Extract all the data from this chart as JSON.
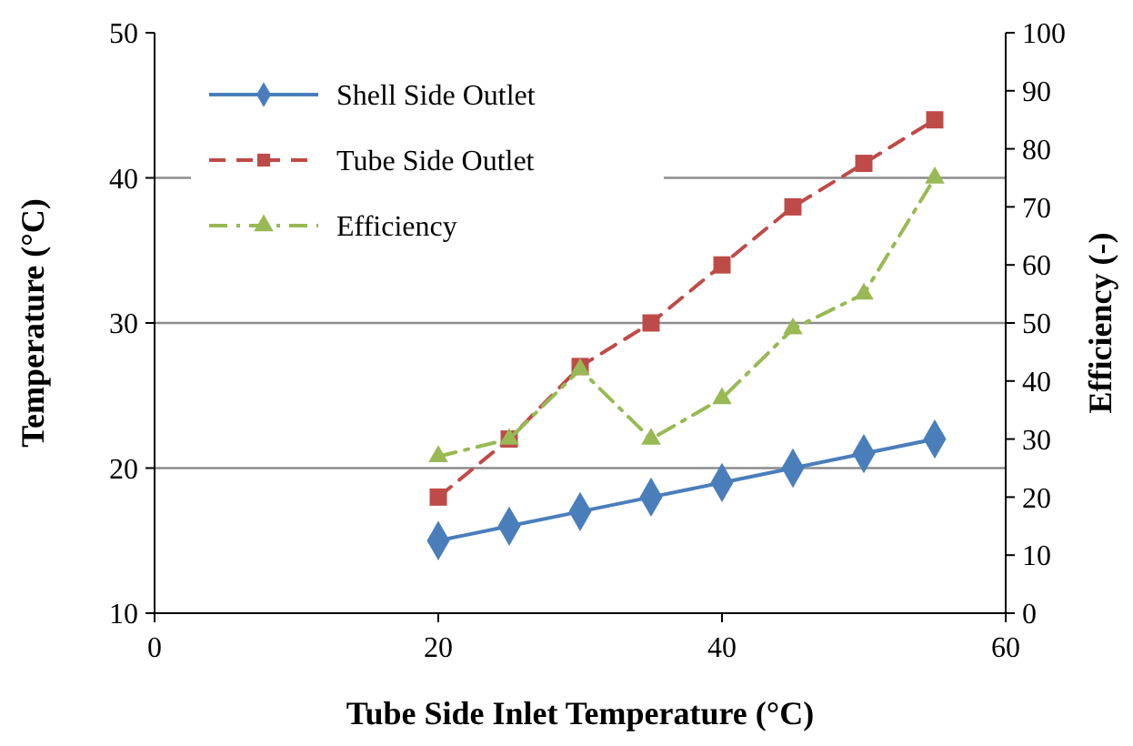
{
  "chart_data": {
    "type": "line",
    "xlabel": "Tube Side Inlet Temperature (°C)",
    "ylabel": "Temperature (°C)",
    "y2label": "Efficiency (-)",
    "x": [
      20,
      25,
      30,
      35,
      40,
      45,
      50,
      55
    ],
    "xlim": [
      0,
      60
    ],
    "xticks": [
      0,
      20,
      40,
      60
    ],
    "ylim": [
      10,
      50
    ],
    "yticks": [
      10,
      20,
      30,
      40,
      50
    ],
    "y2lim": [
      0,
      100
    ],
    "y2ticks": [
      0,
      10,
      20,
      30,
      40,
      50,
      60,
      70,
      80,
      90,
      100
    ],
    "grid": "y",
    "legend": "top left",
    "series": [
      {
        "name": "Shell Side Outlet",
        "color": "#4a7ebb",
        "marker": "diamond",
        "line_style": "solid",
        "values": [
          15,
          16,
          17,
          18,
          19,
          20,
          21,
          22
        ]
      },
      {
        "name": "Tube Side Outlet",
        "color": "#be4b48",
        "marker": "square",
        "line_style": "dashed",
        "values": [
          18,
          22,
          27,
          30,
          34,
          38,
          41,
          44
        ]
      },
      {
        "name": "Efficiency",
        "color": "#98b954",
        "marker": "triangle",
        "line_style": "dashdot",
        "axis": "y2",
        "values": [
          27,
          30,
          42,
          30,
          37,
          49,
          55,
          75
        ]
      }
    ]
  }
}
